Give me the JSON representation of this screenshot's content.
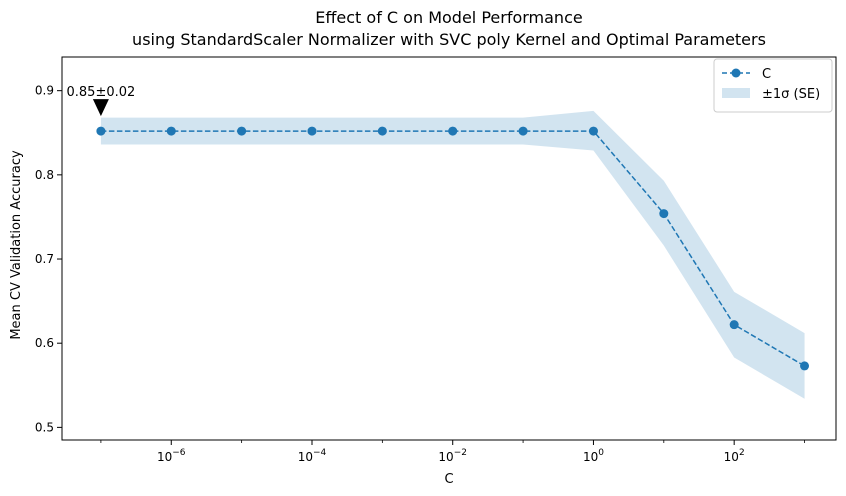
{
  "chart_data": {
    "type": "line",
    "title": "Effect of C on Model Performance",
    "subtitle": "using StandardScaler Normalizer with SVC poly Kernel and Optimal Parameters",
    "xlabel": "C",
    "ylabel": "Mean CV Validation Accuracy",
    "xscale": "log",
    "xlim": [
      2.8e-08,
      2800
    ],
    "ylim": [
      0.485,
      0.94
    ],
    "x_ticks": [
      {
        "value": 1e-06,
        "base": "10",
        "exp": "−6"
      },
      {
        "value": 0.0001,
        "base": "10",
        "exp": "−4"
      },
      {
        "value": 0.01,
        "base": "10",
        "exp": "−2"
      },
      {
        "value": 1,
        "base": "10",
        "exp": "0"
      },
      {
        "value": 100,
        "base": "10",
        "exp": "2"
      }
    ],
    "y_ticks": [
      {
        "value": 0.5,
        "label": "0.5"
      },
      {
        "value": 0.6,
        "label": "0.6"
      },
      {
        "value": 0.7,
        "label": "0.7"
      },
      {
        "value": 0.8,
        "label": "0.8"
      },
      {
        "value": 0.9,
        "label": "0.9"
      }
    ],
    "grid": false,
    "legend_position": "top-right",
    "series": [
      {
        "name": "C",
        "color": "#1f77b4",
        "line_style": "dashed",
        "marker": "circle",
        "x": [
          1e-07,
          1e-06,
          1e-05,
          0.0001,
          0.001,
          0.01,
          0.1,
          1,
          10,
          100,
          1000
        ],
        "y": [
          0.852,
          0.852,
          0.852,
          0.852,
          0.852,
          0.852,
          0.852,
          0.852,
          0.754,
          0.622,
          0.573
        ],
        "lower": [
          0.836,
          0.836,
          0.836,
          0.836,
          0.836,
          0.836,
          0.836,
          0.829,
          0.716,
          0.583,
          0.534
        ],
        "upper": [
          0.868,
          0.868,
          0.868,
          0.868,
          0.868,
          0.868,
          0.868,
          0.876,
          0.793,
          0.661,
          0.612
        ]
      }
    ],
    "band_label": "±1σ (SE)",
    "band_color": "#1f77b4",
    "band_opacity": 0.2,
    "annotation": {
      "text": "0.85±0.02",
      "x": 1e-07,
      "y": 0.852
    }
  }
}
